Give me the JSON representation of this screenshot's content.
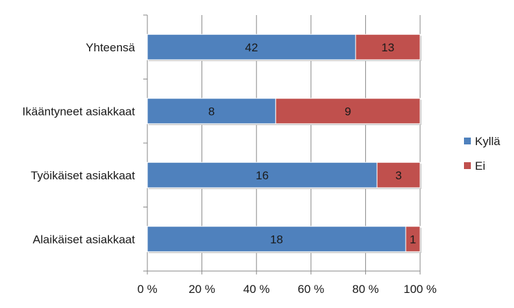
{
  "chart_data": {
    "type": "bar",
    "orientation": "horizontal",
    "stacked": "percent",
    "categories": [
      "Yhteensä",
      "Ikääntyneet asiakkaat",
      "Työikäiset asiakkaat",
      "Alaikäiset asiakkaat"
    ],
    "series": [
      {
        "name": "Kyllä",
        "color": "#4f81bd",
        "values": [
          42,
          8,
          16,
          18
        ]
      },
      {
        "name": "Ei",
        "color": "#c0504d",
        "values": [
          13,
          9,
          3,
          1
        ]
      }
    ],
    "x_ticks": [
      "0 %",
      "20 %",
      "40 %",
      "60 %",
      "80 %",
      "100 %"
    ],
    "xlim": [
      0,
      100
    ],
    "grid": true,
    "legend_position": "right"
  }
}
